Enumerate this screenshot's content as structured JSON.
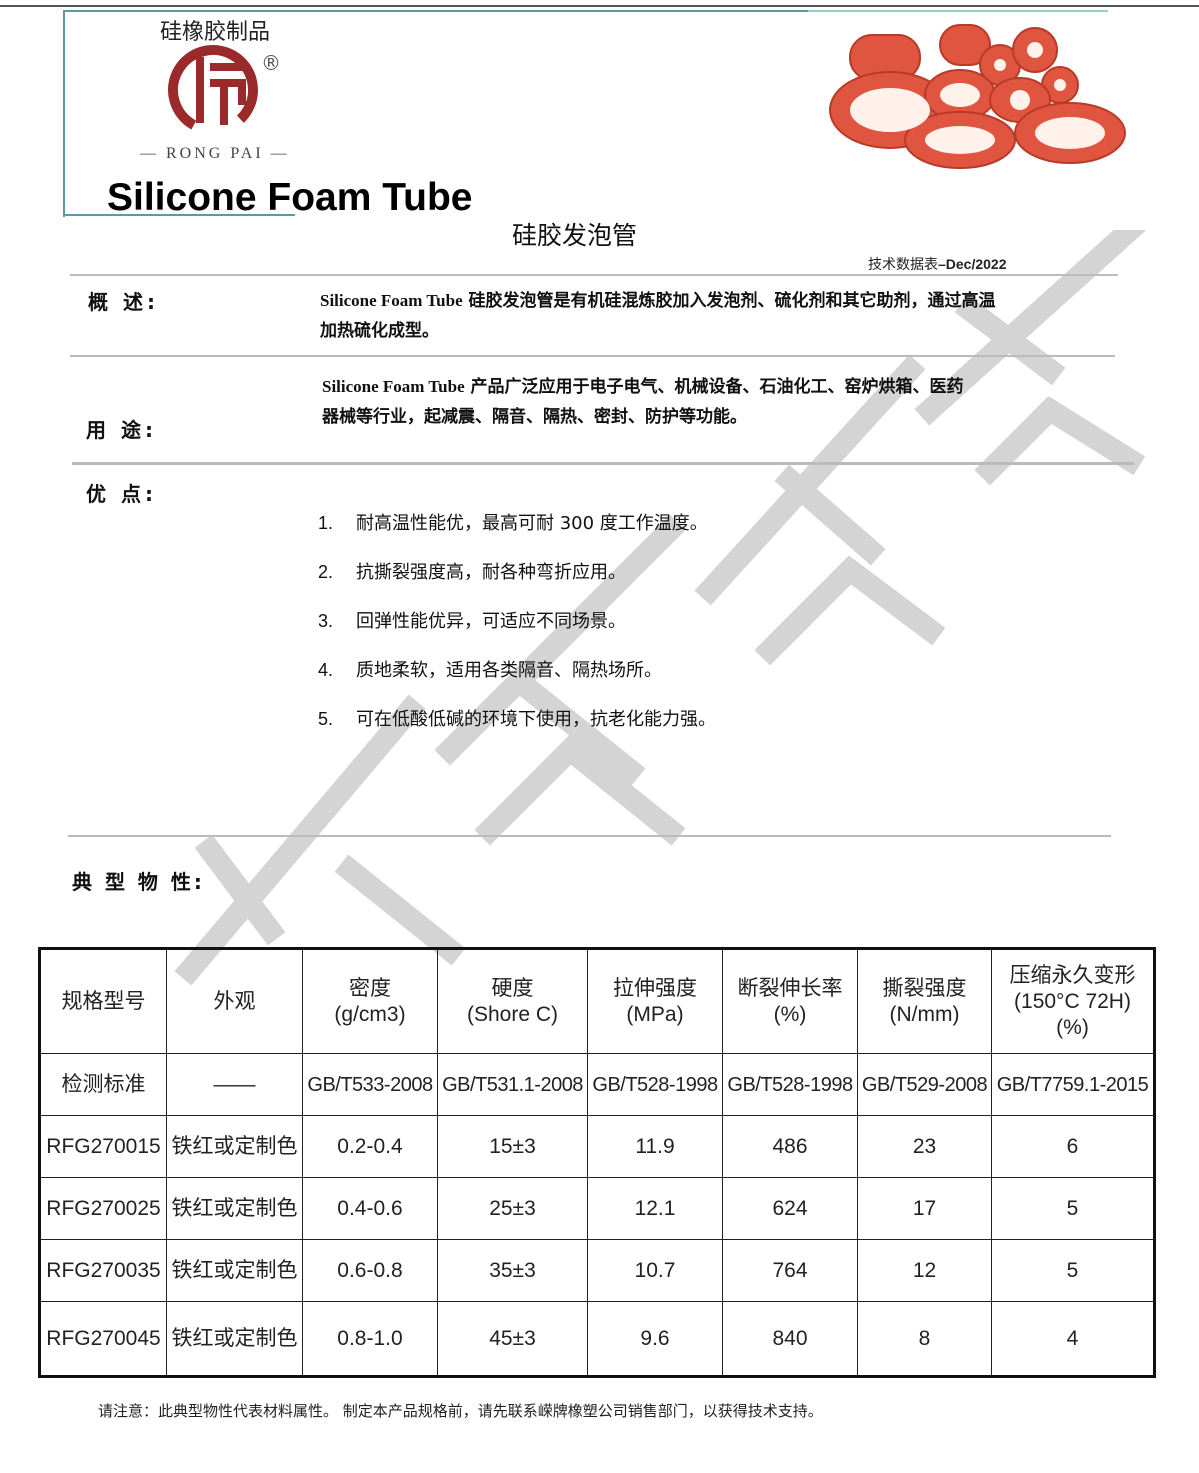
{
  "header": {
    "brand_cn": "硅橡胶制品",
    "brand_en": "— RONG  PAI —",
    "logo_glyph": "嵘",
    "registered": "®",
    "title": "Silicone Foam Tube",
    "subtitle": "硅胶发泡管",
    "datasheet_prefix": "技术数据表",
    "datasheet_date": "–Dec/2022"
  },
  "overview": {
    "label": "概 述:",
    "en": "Silicone Foam Tube",
    "text": " 硅胶发泡管是有机硅混炼胶加入发泡剂、硫化剂和其它助剂，通过高温",
    "text2": "加热硫化成型。"
  },
  "usage": {
    "label": "用 途:",
    "en": "Silicone Foam Tube",
    "text": " 产品广泛应用于电子电气、机械设备、石油化工、窑炉烘箱、医药",
    "text2": "器械等行业，起减震、隔音、隔热、密封、防护等功能。"
  },
  "advantages": {
    "label": "优 点:",
    "items": [
      {
        "n": "1.",
        "text": "耐高温性能优，最高可耐 300 度工作温度。"
      },
      {
        "n": "2.",
        "text": "抗撕裂强度高，耐各种弯折应用。"
      },
      {
        "n": "3.",
        "text": "回弹性能优异，可适应不同场景。"
      },
      {
        "n": "4.",
        "text": "质地柔软，适用各类隔音、隔热场所。"
      },
      {
        "n": "5.",
        "text": "可在低酸低碱的环境下使用，抗老化能力强。"
      }
    ]
  },
  "properties": {
    "label": "典 型 物 性:",
    "headers": [
      [
        "规格型号"
      ],
      [
        "外观"
      ],
      [
        "密度",
        "(g/cm3)"
      ],
      [
        "硬度",
        "(Shore C)"
      ],
      [
        "拉伸强度",
        "(MPa)"
      ],
      [
        "断裂伸长率",
        "(%)"
      ],
      [
        "撕裂强度",
        "(N/mm)"
      ],
      [
        "压缩永久变形",
        "(150°C 72H)",
        "(%)"
      ]
    ],
    "standards": [
      "检测标准",
      "——",
      "GB/T533-2008",
      "GB/T531.1-2008",
      "GB/T528-1998",
      "GB/T528-1998",
      "GB/T529-2008",
      "GB/T7759.1-2015"
    ],
    "rows": [
      [
        "RFG270015",
        "铁红或定制色",
        "0.2-0.4",
        "15±3",
        "11.9",
        "486",
        "23",
        "6"
      ],
      [
        "RFG270025",
        "铁红或定制色",
        "0.4-0.6",
        "25±3",
        "12.1",
        "624",
        "17",
        "5"
      ],
      [
        "RFG270035",
        "铁红或定制色",
        "0.6-0.8",
        "35±3",
        "10.7",
        "764",
        "12",
        "5"
      ],
      [
        "RFG270045",
        "铁红或定制色",
        "0.8-1.0",
        "45±3",
        "9.6",
        "840",
        "8",
        "4"
      ]
    ]
  },
  "footer": {
    "note": "请注意：此典型物性代表材料属性。 制定本产品规格前，请先联系嵘牌橡塑公司销售部门，以获得技术支持。"
  },
  "watermark": "嵘牌橡塑",
  "colors": {
    "logo": "#9b2b2b",
    "tube": "#e0553f",
    "frame": "#5a9aa0"
  }
}
